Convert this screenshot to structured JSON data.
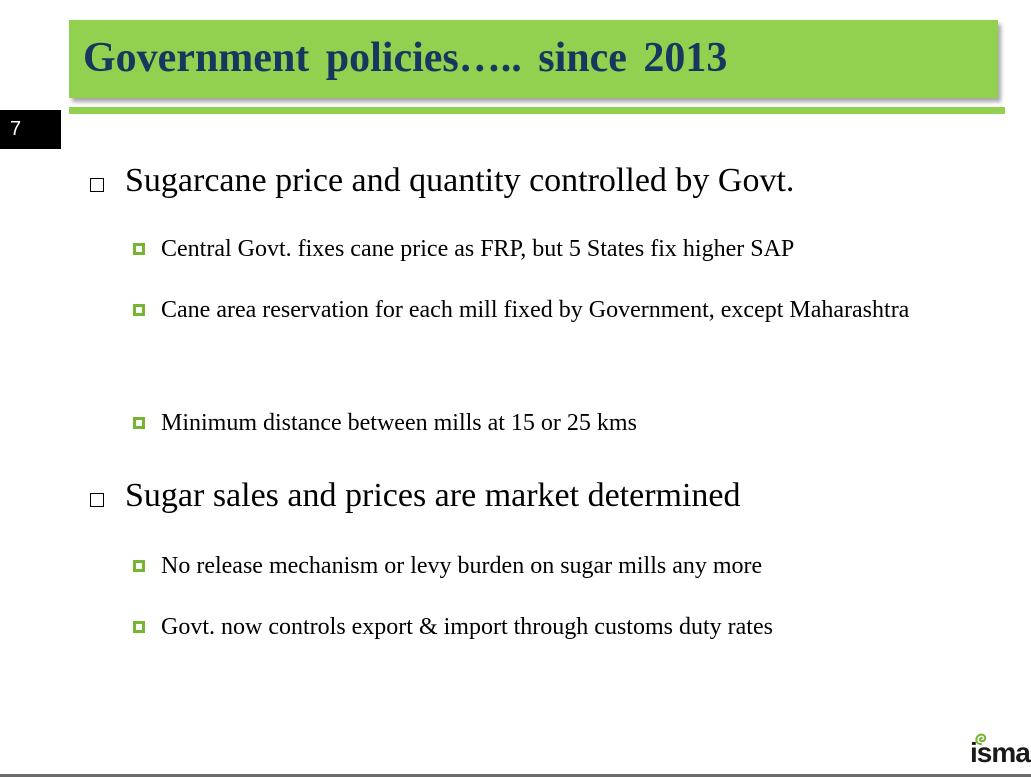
{
  "slide": {
    "title": "Government  policies….. since 2013",
    "number": "7"
  },
  "bullets": [
    {
      "text": "Sugarcane price and quantity controlled by Govt.",
      "sub": [
        "Central Govt. fixes cane price as FRP, but 5 States fix higher SAP",
        "Cane area reservation for each mill fixed by Government, except Maharashtra",
        "Minimum distance between mills at 15 or 25 kms"
      ]
    },
    {
      "text": "Sugar sales and prices are market determined",
      "sub": [
        "No release mechanism or levy burden on sugar mills any more",
        "Govt. now controls export & import through customs duty rates"
      ]
    }
  ],
  "logo": {
    "text": "isma",
    "accent_color": "#76b531"
  },
  "colors": {
    "title_bar": "#92d050",
    "title_text": "#17375e",
    "bullet": "#76b531"
  }
}
